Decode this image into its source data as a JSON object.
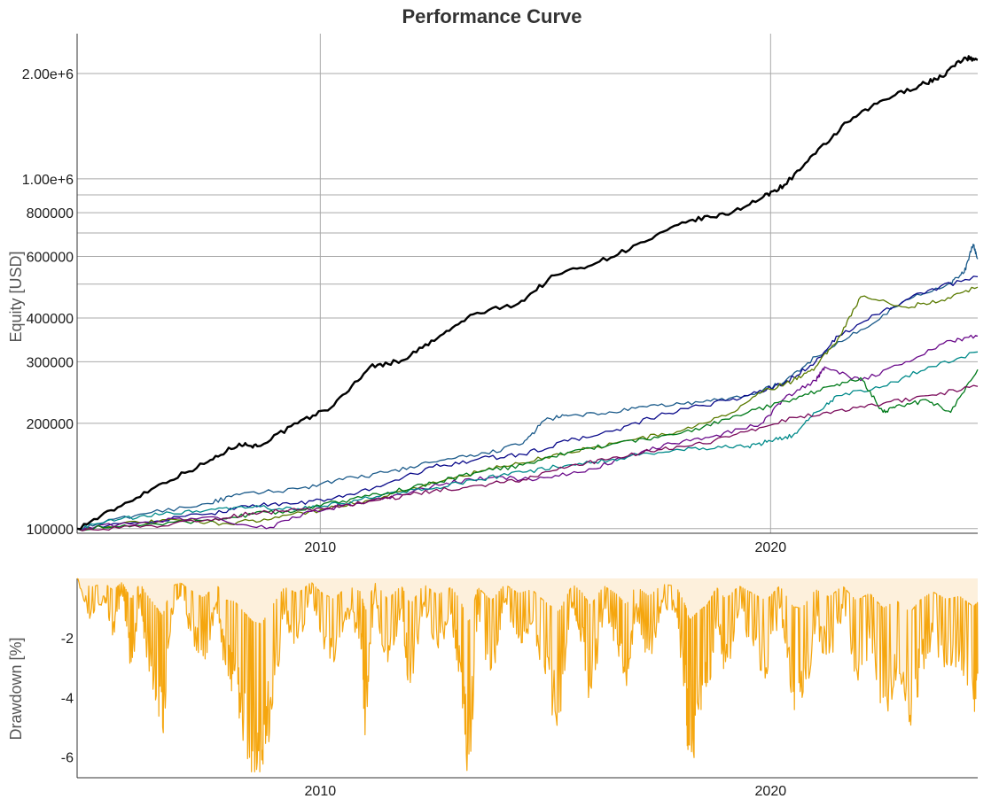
{
  "chart_data": [
    {
      "type": "line",
      "title": "Performance Curve",
      "xlabel": "",
      "ylabel": "Equity [USD]",
      "yscale": "log",
      "xlim": [
        2004.6,
        2024.6
      ],
      "ylim": [
        97000,
        2600000
      ],
      "x_ticks": [
        2010,
        2020
      ],
      "x_tick_labels": [
        "2010",
        "2020"
      ],
      "y_ticks": [
        100000,
        200000,
        300000,
        400000,
        600000,
        800000,
        1000000,
        2000000
      ],
      "y_tick_labels": [
        "100000",
        "200000",
        "300000",
        "400000",
        "600000",
        "800000",
        "1.00e+6",
        "2.00e+6"
      ],
      "y_minor_gridlines": [
        500000,
        700000,
        900000
      ],
      "grid": true,
      "legend": "none",
      "series": [
        {
          "color": "#000000",
          "x": [
            2004.6,
            2005.5,
            2006.5,
            2007.5,
            2008.2,
            2008.6,
            2009.5,
            2010.3,
            2011.1,
            2011.8,
            2012.6,
            2013.4,
            2014.4,
            2015.2,
            2016.2,
            2017.2,
            2018.2,
            2019.0,
            2019.8,
            2020.3,
            2021.0,
            2021.7,
            2022.5,
            2023.3,
            2023.8,
            2024.3,
            2024.6
          ],
          "values": [
            100000,
            115000,
            135000,
            155000,
            175000,
            172000,
            200000,
            225000,
            290000,
            302000,
            350000,
            410000,
            440000,
            530000,
            580000,
            660000,
            760000,
            790000,
            880000,
            960000,
            1180000,
            1450000,
            1680000,
            1850000,
            1960000,
            2220000,
            2190000
          ]
        },
        {
          "color": "#1a5a8a",
          "x": [
            2004.6,
            2006.0,
            2007.5,
            2008.2,
            2009.5,
            2010.5,
            2011.5,
            2012.5,
            2013.5,
            2014.5,
            2015.0,
            2015.5,
            2016.5,
            2017.5,
            2018.5,
            2019.5,
            2020.3,
            2021.0,
            2022.0,
            2023.0,
            2024.0,
            2024.3,
            2024.5,
            2024.6
          ],
          "values": [
            100000,
            110000,
            118000,
            125000,
            130000,
            138000,
            145000,
            155000,
            162000,
            175000,
            205000,
            210000,
            215000,
            225000,
            230000,
            240000,
            262000,
            310000,
            370000,
            450000,
            505000,
            540000,
            650000,
            590000
          ]
        },
        {
          "color": "#0a0a8a",
          "x": [
            2004.6,
            2006.0,
            2007.5,
            2008.5,
            2009.5,
            2010.5,
            2011.5,
            2012.5,
            2013.5,
            2014.5,
            2015.5,
            2016.5,
            2017.5,
            2018.5,
            2019.5,
            2020.3,
            2021.0,
            2021.5,
            2022.5,
            2023.5,
            2024.6
          ],
          "values": [
            100000,
            104000,
            110000,
            117000,
            118000,
            123000,
            135000,
            150000,
            158000,
            163000,
            178000,
            190000,
            210000,
            225000,
            240000,
            260000,
            300000,
            355000,
            420000,
            480000,
            525000
          ]
        },
        {
          "color": "#5a7a00",
          "x": [
            2004.6,
            2006.0,
            2007.0,
            2008.0,
            2009.0,
            2010.0,
            2011.0,
            2012.0,
            2013.0,
            2014.0,
            2015.0,
            2016.0,
            2017.0,
            2018.0,
            2019.0,
            2019.8,
            2020.5,
            2021.0,
            2021.5,
            2022.0,
            2023.0,
            2023.8,
            2024.6
          ],
          "values": [
            100000,
            104000,
            106000,
            103000,
            108000,
            113000,
            120000,
            130000,
            140000,
            150000,
            160000,
            170000,
            180000,
            190000,
            210000,
            245000,
            265000,
            290000,
            350000,
            460000,
            430000,
            450000,
            490000
          ]
        },
        {
          "color": "#6a0a8a",
          "x": [
            2004.6,
            2006.0,
            2007.5,
            2008.8,
            2009.8,
            2010.8,
            2011.8,
            2012.8,
            2013.8,
            2014.8,
            2015.8,
            2016.8,
            2017.8,
            2018.8,
            2019.8,
            2020.3,
            2021.0,
            2021.2,
            2022.0,
            2023.0,
            2024.0,
            2024.6
          ],
          "values": [
            100000,
            104000,
            108000,
            100000,
            112000,
            118000,
            125000,
            135000,
            140000,
            138000,
            145000,
            160000,
            175000,
            185000,
            200000,
            235000,
            265000,
            290000,
            265000,
            300000,
            345000,
            355000
          ]
        },
        {
          "color": "#008a8a",
          "x": [
            2004.6,
            2005.5,
            2006.5,
            2007.5,
            2008.5,
            2009.5,
            2010.5,
            2011.5,
            2012.5,
            2013.5,
            2014.5,
            2015.5,
            2016.5,
            2017.5,
            2018.5,
            2019.5,
            2020.0,
            2020.5,
            2021.0,
            2021.5,
            2022.5,
            2023.5,
            2024.6
          ],
          "values": [
            100000,
            106000,
            110000,
            113000,
            115000,
            114000,
            118000,
            126000,
            130000,
            138000,
            145000,
            152000,
            158000,
            165000,
            170000,
            172000,
            178000,
            185000,
            215000,
            240000,
            255000,
            290000,
            320000
          ]
        },
        {
          "color": "#007a1a",
          "x": [
            2004.6,
            2006.0,
            2007.5,
            2008.5,
            2009.5,
            2010.5,
            2011.5,
            2012.5,
            2013.5,
            2014.5,
            2015.5,
            2016.5,
            2017.5,
            2018.5,
            2019.5,
            2020.5,
            2021.3,
            2022.0,
            2022.5,
            2022.8,
            2023.5,
            2024.0,
            2024.6
          ],
          "values": [
            100000,
            102000,
            106000,
            110000,
            113000,
            120000,
            127000,
            135000,
            145000,
            152000,
            165000,
            175000,
            182000,
            195000,
            215000,
            235000,
            255000,
            270000,
            215000,
            225000,
            232000,
            215000,
            285000
          ]
        },
        {
          "color": "#7a0a5a",
          "x": [
            2004.6,
            2006.0,
            2007.5,
            2008.5,
            2009.5,
            2010.5,
            2011.5,
            2012.5,
            2013.5,
            2014.5,
            2015.5,
            2016.5,
            2017.5,
            2018.5,
            2019.5,
            2020.5,
            2021.5,
            2022.5,
            2023.5,
            2024.6
          ],
          "values": [
            100000,
            101000,
            106000,
            111000,
            113000,
            116000,
            122000,
            128000,
            133000,
            138000,
            150000,
            160000,
            168000,
            175000,
            190000,
            208000,
            218000,
            228000,
            240000,
            255000
          ]
        }
      ]
    },
    {
      "type": "area",
      "title": "",
      "xlabel": "",
      "ylabel": "Drawdown [%]",
      "xlim": [
        2004.6,
        2024.6
      ],
      "ylim": [
        -6.7,
        0
      ],
      "x_ticks": [
        2010,
        2020
      ],
      "x_tick_labels": [
        "2010",
        "2020"
      ],
      "y_ticks": [
        -2,
        -4,
        -6
      ],
      "y_tick_labels": [
        "-2",
        "-4",
        "-6"
      ],
      "grid": false,
      "legend": "none",
      "series": [
        {
          "color": "#f5a60e",
          "fill": "#fdf0dc",
          "x": [
            2004.6,
            2004.9,
            2005.2,
            2005.4,
            2005.6,
            2005.8,
            2006.0,
            2006.1,
            2006.3,
            2006.5,
            2006.7,
            2006.9,
            2007.1,
            2007.4,
            2007.7,
            2007.9,
            2008.1,
            2008.3,
            2008.5,
            2008.7,
            2008.9,
            2009.2,
            2009.5,
            2009.8,
            2010.0,
            2010.3,
            2010.6,
            2010.9,
            2011.0,
            2011.2,
            2011.5,
            2011.8,
            2012.0,
            2012.3,
            2012.6,
            2012.9,
            2013.1,
            2013.3,
            2013.5,
            2013.8,
            2014.1,
            2014.4,
            2014.7,
            2015.0,
            2015.3,
            2015.6,
            2015.8,
            2016.0,
            2016.3,
            2016.6,
            2016.8,
            2017.0,
            2017.3,
            2017.6,
            2017.9,
            2018.1,
            2018.2,
            2018.4,
            2018.6,
            2018.8,
            2019.0,
            2019.3,
            2019.6,
            2019.9,
            2020.2,
            2020.5,
            2020.7,
            2021.0,
            2021.3,
            2021.6,
            2021.9,
            2022.2,
            2022.5,
            2022.8,
            2023.1,
            2023.3,
            2023.6,
            2023.9,
            2024.2,
            2024.5,
            2024.6
          ],
          "values": [
            0,
            -1.2,
            -0.6,
            -1.6,
            -0.5,
            -2.8,
            -0.6,
            -1.8,
            -3.4,
            -5.0,
            -1.0,
            -0.6,
            -1.5,
            -2.6,
            -0.8,
            -2.9,
            -3.1,
            -4.5,
            -5.8,
            -6.1,
            -4.0,
            -1.2,
            -2.0,
            -0.5,
            -1.8,
            -2.8,
            -1.0,
            -1.8,
            -4.5,
            -0.5,
            -2.8,
            -1.0,
            -3.5,
            -0.8,
            -2.2,
            -1.2,
            -2.8,
            -5.9,
            -1.2,
            -3.0,
            -0.8,
            -2.0,
            -1.5,
            -3.2,
            -4.5,
            -0.8,
            -1.8,
            -3.6,
            -1.0,
            -2.2,
            -3.6,
            -1.0,
            -2.4,
            -0.8,
            -1.0,
            -3.5,
            -5.6,
            -4.4,
            -3.5,
            -1.2,
            -2.8,
            -1.0,
            -2.0,
            -3.0,
            -1.0,
            -3.8,
            -4.0,
            -1.5,
            -2.5,
            -1.0,
            -3.0,
            -2.0,
            -4.0,
            -3.0,
            -4.6,
            -3.0,
            -1.8,
            -2.8,
            -2.4,
            -3.8,
            -3.2
          ]
        }
      ]
    }
  ]
}
